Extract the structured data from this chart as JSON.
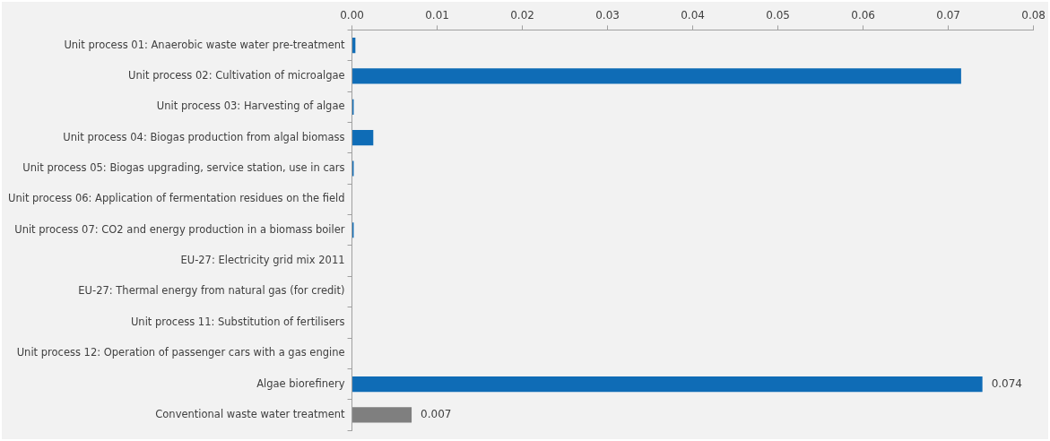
{
  "chart_data": {
    "type": "bar",
    "orientation": "horizontal",
    "categories": [
      "Unit process 01: Anaerobic waste water pre-treatment",
      "Unit process 02: Cultivation of microalgae",
      "Unit process 03: Harvesting of algae",
      "Unit process 04: Biogas production from algal biomass",
      "Unit process 05: Biogas upgrading, service station, use in cars",
      "Unit process 06: Application of fermentation residues on the field",
      "Unit process 07: CO2 and energy production in a biomass boiler",
      "EU-27: Electricity grid mix 2011",
      "EU-27: Thermal energy from natural gas (for credit)",
      "Unit process 11: Substitution of fertilisers",
      "Unit process 12: Operation of passenger cars with a gas engine",
      "Algae biorefinery",
      "Conventional waste water treatment"
    ],
    "values": [
      0.0004,
      0.0715,
      0.0002,
      0.0025,
      0.0002,
      0,
      0.0002,
      0,
      0,
      0,
      0,
      0.074,
      0.007
    ],
    "colors": [
      "#0f6cb6",
      "#0f6cb6",
      "#0f6cb6",
      "#0f6cb6",
      "#0f6cb6",
      "#0f6cb6",
      "#0f6cb6",
      "#0f6cb6",
      "#0f6cb6",
      "#0f6cb6",
      "#0f6cb6",
      "#0f6cb6",
      "#7f7f7f"
    ],
    "value_labels": [
      null,
      null,
      null,
      null,
      null,
      null,
      null,
      null,
      null,
      null,
      null,
      "0.074",
      "0.007"
    ],
    "xlim": [
      0,
      0.08
    ],
    "xticks": [
      {
        "value": 0,
        "label": "0.00"
      },
      {
        "value": 0.01,
        "label": "0.01"
      },
      {
        "value": 0.02,
        "label": "0.02"
      },
      {
        "value": 0.03,
        "label": "0.03"
      },
      {
        "value": 0.04,
        "label": "0.04"
      },
      {
        "value": 0.05,
        "label": "0.05"
      },
      {
        "value": 0.06,
        "label": "0.06"
      },
      {
        "value": 0.07,
        "label": "0.07"
      },
      {
        "value": 0.08,
        "label": "0.08"
      }
    ],
    "grid": false,
    "legend": false
  }
}
